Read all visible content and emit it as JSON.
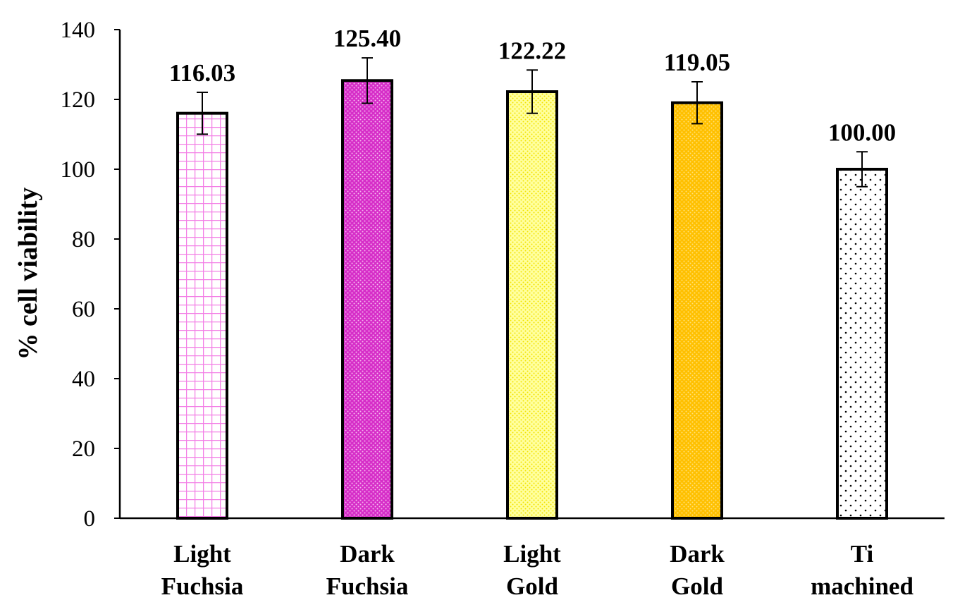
{
  "chart_data": {
    "type": "bar",
    "title": "",
    "xlabel": "",
    "ylabel": "% cell viability",
    "ylim": [
      0,
      140
    ],
    "yticks": [
      0,
      20,
      40,
      60,
      80,
      100,
      120,
      140
    ],
    "grid": false,
    "legend": "none",
    "categories": [
      [
        "Light",
        "Fuchsia"
      ],
      [
        "Dark",
        "Fuchsia"
      ],
      [
        "Light",
        "Gold"
      ],
      [
        "Dark",
        "Gold"
      ],
      [
        "Ti",
        "machined"
      ]
    ],
    "values": [
      116.03,
      125.4,
      122.22,
      119.05,
      100.0
    ],
    "data_labels": [
      "116.03",
      "125.40",
      "122.22",
      "119.05",
      "100.00"
    ],
    "errors": [
      6,
      6.5,
      6.2,
      6,
      5
    ],
    "bar_styles": [
      {
        "pattern": "grid",
        "fill": "#ffffff",
        "ink": "#f37fe6"
      },
      {
        "pattern": "dense-dots",
        "fill": "#d62ec8",
        "ink": "#f6b8f0"
      },
      {
        "pattern": "dense-dots",
        "fill": "#ffff9e",
        "ink": "#f2e300"
      },
      {
        "pattern": "dense-dots",
        "fill": "#ffc000",
        "ink": "#ffe27a"
      },
      {
        "pattern": "sparse-dots",
        "fill": "#ffffff",
        "ink": "#000000"
      }
    ]
  }
}
